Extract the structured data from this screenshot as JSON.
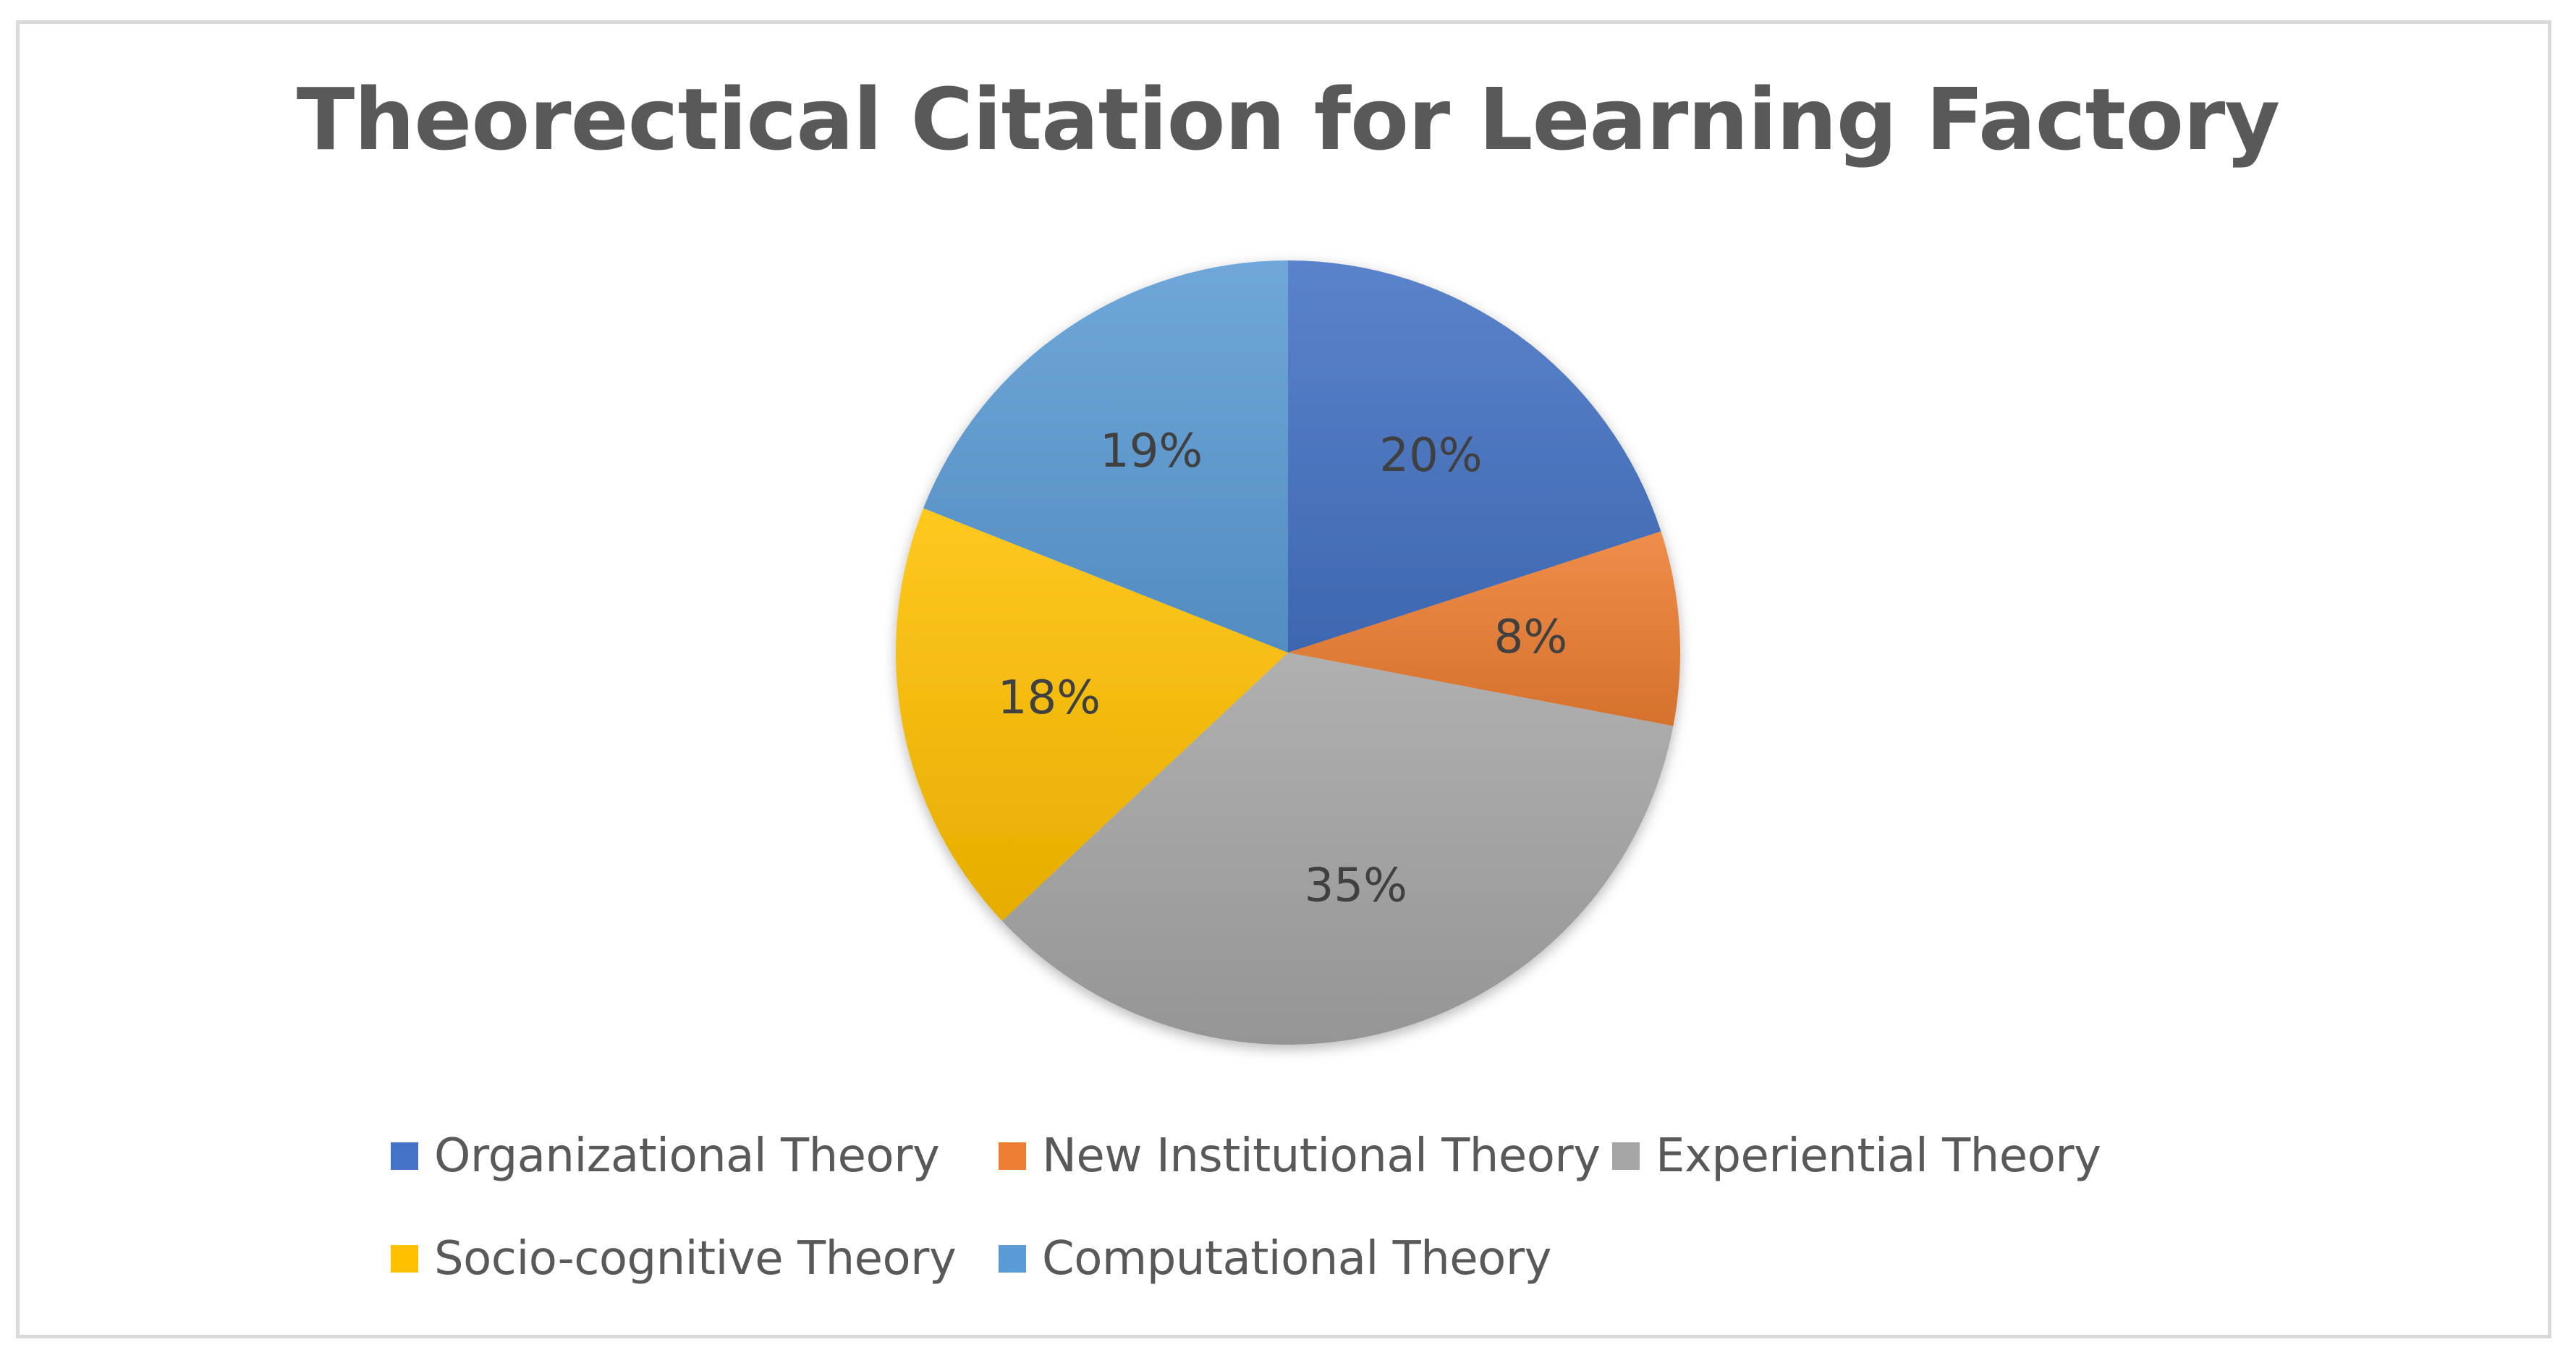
{
  "chart_data": {
    "type": "pie",
    "title": "Theorectical Citation for Learning Factory",
    "categories": [
      "Organizational Theory",
      "New Institutional Theory",
      "Experiential Theory",
      "Socio-cognitive Theory",
      "Computational Theory"
    ],
    "values": [
      20,
      8,
      35,
      18,
      19
    ],
    "data_labels": [
      "20%",
      "8%",
      "35%",
      "18%",
      "19%"
    ],
    "colors": [
      "#4472C4",
      "#ED7D31",
      "#A5A5A5",
      "#FFC000",
      "#5B9BD5"
    ],
    "legend_position": "bottom",
    "start_angle": "12 o'clock",
    "direction": "clockwise"
  }
}
